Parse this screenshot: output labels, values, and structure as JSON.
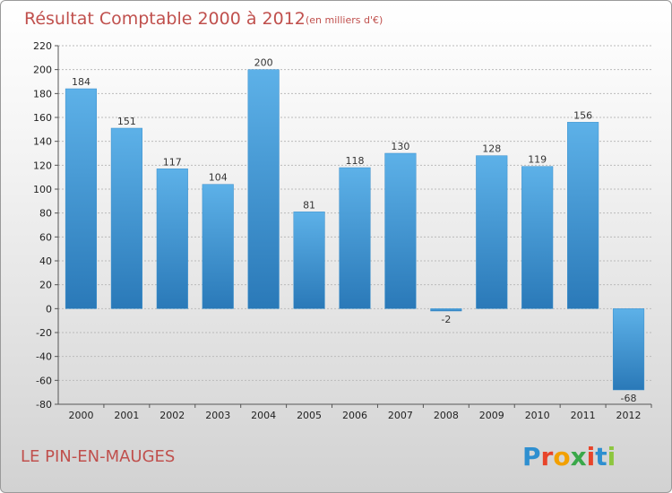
{
  "chart_data": {
    "type": "bar",
    "title": "Résultat Comptable 2000 à 2012",
    "subtitle": "(en milliers d'€)",
    "categories": [
      "2000",
      "2001",
      "2002",
      "2003",
      "2004",
      "2005",
      "2006",
      "2007",
      "2008",
      "2009",
      "2010",
      "2011",
      "2012"
    ],
    "values": [
      184,
      151,
      117,
      104,
      200,
      81,
      118,
      130,
      -2,
      128,
      119,
      156,
      -68
    ],
    "ylim": [
      -80,
      220
    ],
    "yticks": [
      -80,
      -60,
      -40,
      -20,
      0,
      20,
      40,
      60,
      80,
      100,
      120,
      140,
      160,
      180,
      200,
      220
    ],
    "grid": true,
    "bar_color": "#4da3de",
    "bar_color_dark": "#2a79b8"
  },
  "footer": {
    "commune": "LE PIN-EN-MAUGES",
    "logo_letters": [
      "P",
      "r",
      "o",
      "x",
      "i",
      "t",
      "i"
    ],
    "logo_colors": [
      "#2e8fd0",
      "#e8442a",
      "#f2a000",
      "#3aa84a",
      "#e8442a",
      "#2e8fd0",
      "#8dc63f"
    ]
  },
  "colors": {
    "title": "#c0504d",
    "grid": "#bbbbbb",
    "axis": "#555555"
  }
}
